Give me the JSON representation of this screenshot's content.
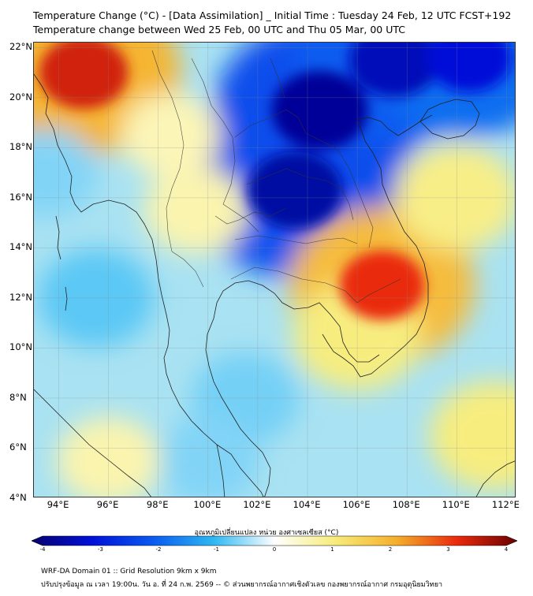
{
  "title": {
    "line1": "Temperature Change (°C) - [Data Assimilation] _ Initial Time : Tuesday 24 Feb, 12 UTC FCST+192",
    "line2": "Temperature change between Wed 25 Feb, 00 UTC and Thu 05 Mar, 00 UTC"
  },
  "map": {
    "lat_labels": [
      "22°N",
      "20°N",
      "18°N",
      "16°N",
      "14°N",
      "12°N",
      "10°N",
      "8°N",
      "6°N",
      "4°N"
    ],
    "lon_labels": [
      "94°E",
      "96°E",
      "98°E",
      "100°E",
      "102°E",
      "104°E",
      "106°E",
      "108°E",
      "110°E",
      "112°E"
    ],
    "lat_values": [
      22,
      20,
      18,
      16,
      14,
      12,
      10,
      8,
      6,
      4
    ],
    "lon_values": [
      94,
      96,
      98,
      100,
      102,
      104,
      106,
      108,
      110,
      112
    ],
    "lat_range": [
      4,
      22.2
    ],
    "lon_range": [
      93,
      112.4
    ],
    "anomalies": [
      {
        "region": "northeast Thailand / Laos",
        "lon": 103.5,
        "lat": 16.3,
        "value": -3.5
      },
      {
        "region": "northern Laos / north Vietnam",
        "lon": 104.5,
        "lat": 19.5,
        "value": -3.6
      },
      {
        "region": "Gulf of Tonkin",
        "lon": 107.5,
        "lat": 21.5,
        "value": -3.3
      },
      {
        "region": "northeast corner",
        "lon": 110.5,
        "lat": 21.6,
        "value": -3.0
      },
      {
        "region": "northwest Myanmar",
        "lon": 95,
        "lat": 21,
        "value": 3.2
      },
      {
        "region": "southern Vietnam / Cambodia",
        "lon": 107,
        "lat": 12.5,
        "value": 3.0
      },
      {
        "region": "Mekong delta",
        "lon": 106,
        "lat": 10.5,
        "value": 1.6
      },
      {
        "region": "South China Sea",
        "lon": 110,
        "lat": 16,
        "value": 1.5
      },
      {
        "region": "central Thailand",
        "lon": 99.5,
        "lat": 15.5,
        "value": 1.0
      },
      {
        "region": "Andaman Sea",
        "lon": 95.5,
        "lat": 12,
        "value": -1.3
      },
      {
        "region": "Bay of Bengal",
        "lon": 93.5,
        "lat": 17,
        "value": -1.0
      },
      {
        "region": "Gulf of Thailand",
        "lon": 101.5,
        "lat": 8,
        "value": -1.1
      },
      {
        "region": "southern Malay Peninsula",
        "lon": 100,
        "lat": 5.5,
        "value": -1.0
      },
      {
        "region": "southeast sea",
        "lon": 111.5,
        "lat": 6.5,
        "value": 1.6
      },
      {
        "region": "southern Myanmar",
        "lon": 98.5,
        "lat": 18.5,
        "value": 0.9
      },
      {
        "region": "Sumatra north",
        "lon": 96,
        "lat": 5.5,
        "value": 1.0
      }
    ]
  },
  "colorbar": {
    "label": "อุณหภูมิเปลี่ยนแปลง หน่วย องศาเซลเซียส (°C)",
    "ticks": [
      "-4",
      "-3",
      "-2",
      "-1",
      "0",
      "1",
      "2",
      "3",
      "4"
    ],
    "range": [
      -4,
      4
    ],
    "colors": [
      "#08006e",
      "#0010d8",
      "#0a5af0",
      "#2eb8f2",
      "#ffffff",
      "#f7ec7a",
      "#f5b02c",
      "#ea2a0c",
      "#6a0000"
    ]
  },
  "footer": {
    "line1": "WRF-DA Domain 01 :: Grid Resolution 9km x 9km",
    "line2": "ปรับปรุงข้อมูล ณ เวลา 19:00น. วัน อ. ที่ 24 ก.พ. 2569 -- © ส่วนพยากรณ์อากาศเชิงตัวเลข กองพยากรณ์อากาศ กรมอุตุนิยมวิทยา"
  }
}
